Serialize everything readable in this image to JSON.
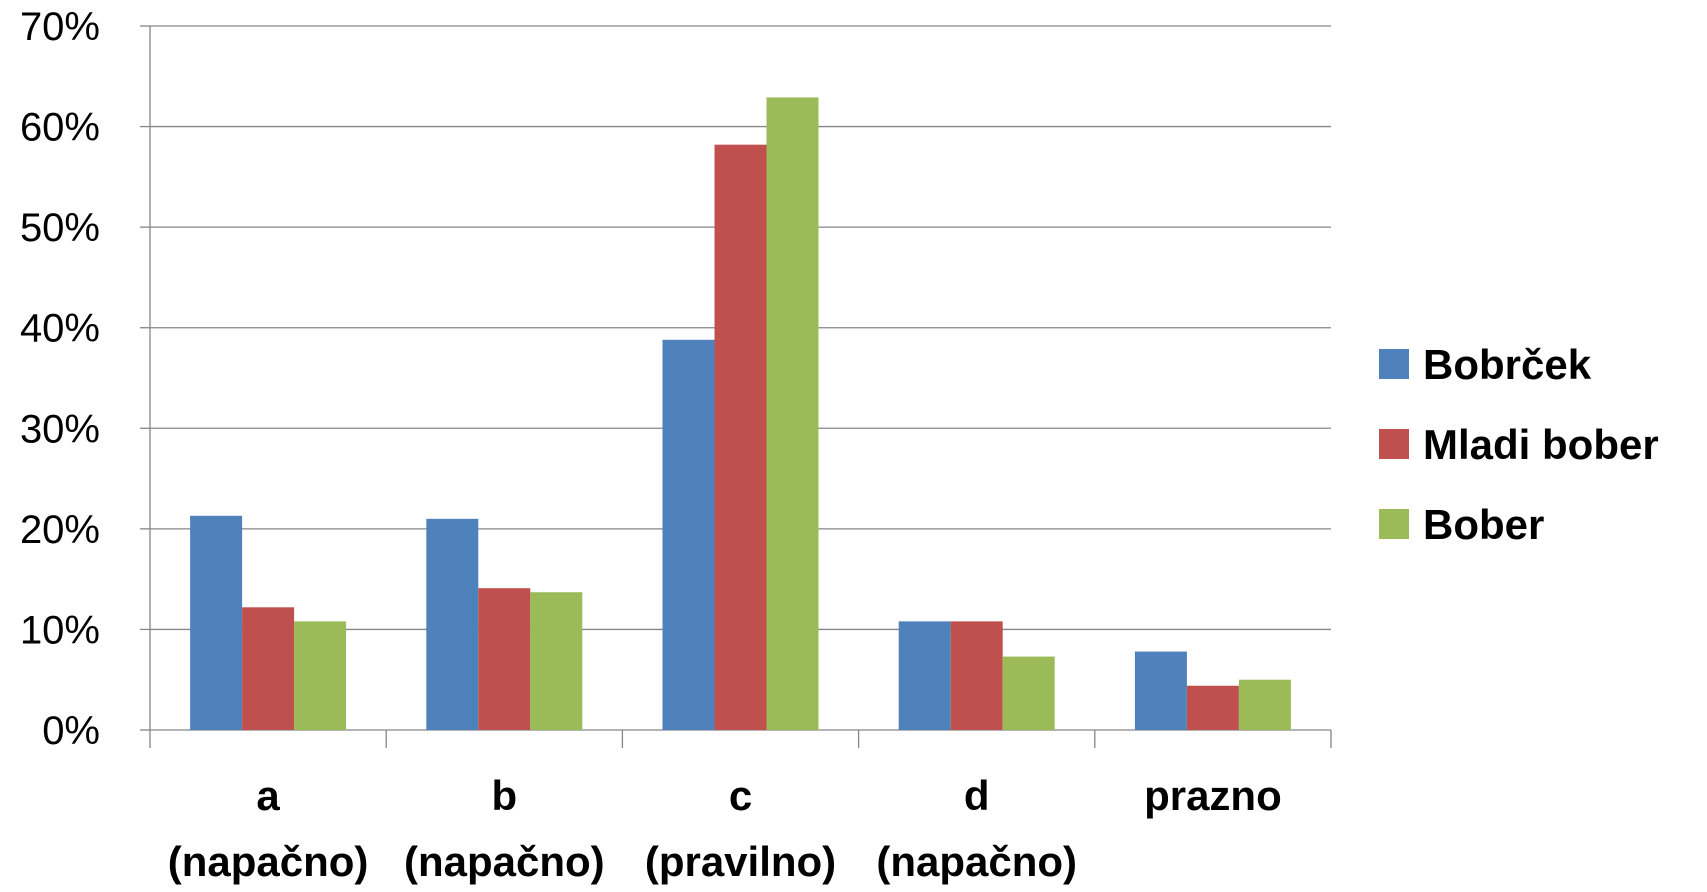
{
  "chart_data": {
    "type": "bar",
    "categories": [
      [
        "a",
        "(napačno)"
      ],
      [
        "b",
        "(napačno)"
      ],
      [
        "c",
        "(pravilno)"
      ],
      [
        "d",
        "(napačno)"
      ],
      [
        "prazno"
      ]
    ],
    "series": [
      {
        "name": "Bobrček",
        "color": "#4f81bd",
        "values": [
          0.213,
          0.21,
          0.388,
          0.108,
          0.078
        ]
      },
      {
        "name": "Mladi bober",
        "color": "#c0504d",
        "values": [
          0.122,
          0.141,
          0.582,
          0.108,
          0.044
        ]
      },
      {
        "name": "Bober",
        "color": "#9bbb59",
        "values": [
          0.108,
          0.137,
          0.629,
          0.073,
          0.05
        ]
      }
    ],
    "ylim": [
      0,
      0.7
    ],
    "yticks": [
      "0%",
      "10%",
      "20%",
      "30%",
      "40%",
      "50%",
      "60%",
      "70%"
    ],
    "grid": true,
    "legend": "right"
  }
}
